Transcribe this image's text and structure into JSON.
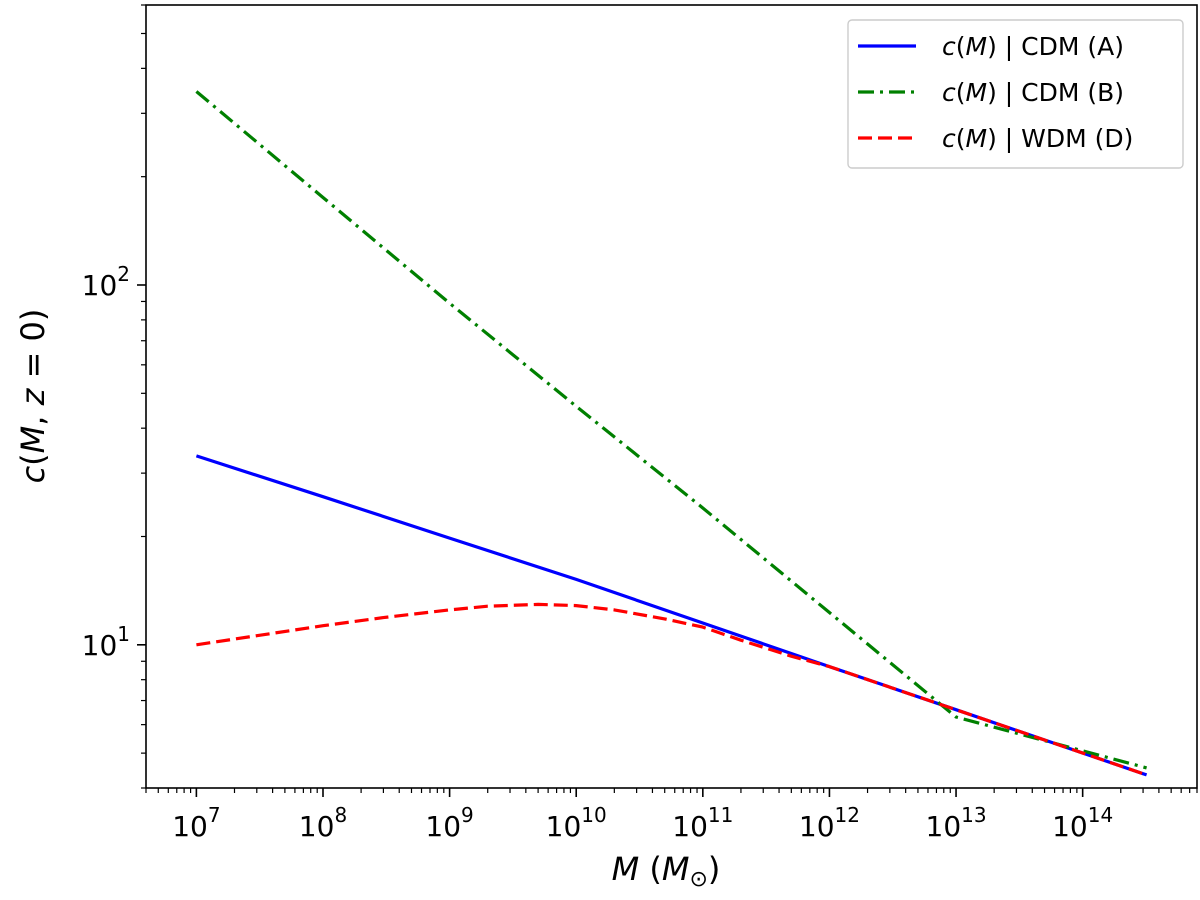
{
  "chart_data": {
    "type": "line",
    "xlabel": {
      "var": "M",
      "open": " (",
      "sub_var": "M",
      "sub": "⊙",
      "close": ")"
    },
    "ylabel": {
      "pre": "c",
      "open": "(",
      "v1": "M",
      "comma": ", ",
      "v2": "z",
      "eq": " = 0)"
    },
    "x_scale": "log",
    "y_scale": "log",
    "xlim": [
      4000000.0,
      800000000000000.0
    ],
    "ylim": [
      4.0,
      600
    ],
    "x_ticks": [
      {
        "value": 10000000.0,
        "base": "10",
        "exp": "7"
      },
      {
        "value": 100000000.0,
        "base": "10",
        "exp": "8"
      },
      {
        "value": 1000000000.0,
        "base": "10",
        "exp": "9"
      },
      {
        "value": 10000000000.0,
        "base": "10",
        "exp": "10"
      },
      {
        "value": 100000000000.0,
        "base": "10",
        "exp": "11"
      },
      {
        "value": 1000000000000.0,
        "base": "10",
        "exp": "12"
      },
      {
        "value": 10000000000000.0,
        "base": "10",
        "exp": "13"
      },
      {
        "value": 100000000000000.0,
        "base": "10",
        "exp": "14"
      }
    ],
    "y_ticks": [
      {
        "value": 10,
        "base": "10",
        "exp": "1"
      },
      {
        "value": 100,
        "base": "10",
        "exp": "2"
      }
    ],
    "grid": false,
    "legend_position": "top-right",
    "series": [
      {
        "name": {
          "func": "c",
          "open": "(",
          "var": "M",
          "close": ")",
          "rest": " | CDM (A)"
        },
        "color": "#0000ff",
        "style": "solid",
        "x": [
          10000000.0,
          100000000.0,
          1000000000.0,
          10000000000.0,
          100000000000.0,
          1000000000000.0,
          10000000000000.0,
          320000000000000.0
        ],
        "y": [
          33.5,
          25.8,
          19.8,
          15.2,
          11.5,
          8.7,
          6.6,
          4.35
        ]
      },
      {
        "name": {
          "func": "c",
          "open": "(",
          "var": "M",
          "close": ")",
          "rest": " | CDM (B)"
        },
        "color": "#008000",
        "style": "dashdot",
        "x": [
          10000000.0,
          100000000.0,
          1000000000.0,
          10000000000.0,
          100000000000.0,
          1000000000000.0,
          10000000000000.0,
          320000000000000.0
        ],
        "y": [
          345,
          175,
          89,
          46,
          24,
          12.3,
          6.3,
          4.55
        ]
      },
      {
        "name": {
          "func": "c",
          "open": "(",
          "var": "M",
          "close": ")",
          "rest": " | WDM (D)"
        },
        "color": "#ff0000",
        "style": "dashed",
        "x": [
          10000000.0,
          30000000.0,
          100000000.0,
          300000000.0,
          1000000000.0,
          2000000000.0,
          5000000000.0,
          10000000000.0,
          20000000000.0,
          50000000000.0,
          100000000000.0,
          200000000000.0,
          500000000000.0,
          1000000000000.0,
          10000000000000.0,
          320000000000000.0
        ],
        "y": [
          10.0,
          10.6,
          11.3,
          11.9,
          12.5,
          12.8,
          12.95,
          12.85,
          12.5,
          11.8,
          11.2,
          10.3,
          9.3,
          8.7,
          6.6,
          4.35
        ]
      }
    ]
  }
}
